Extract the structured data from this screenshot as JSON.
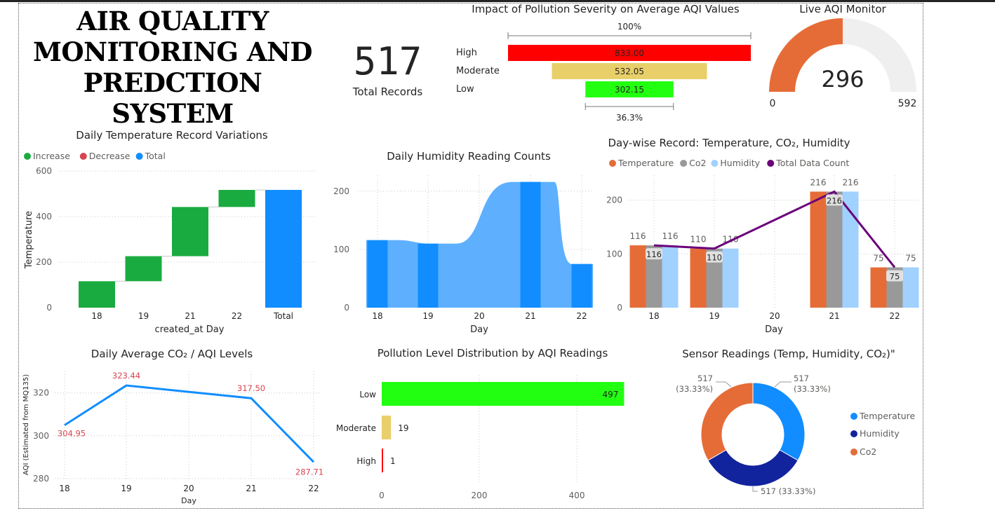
{
  "header": {
    "title_lines": [
      "AIR QUALITY",
      "MONITORING AND",
      "PREDCTION SYSTEM"
    ]
  },
  "card": {
    "value": "517",
    "label": "Total Records"
  },
  "funnel": {
    "title": "Impact of Pollution Severity on Average AQI Values",
    "top_pct": "100%",
    "bottom_pct": "36.3%",
    "chart_data": {
      "type": "bar",
      "categories": [
        "High",
        "Moderate",
        "Low"
      ],
      "values": [
        833.0,
        532.05,
        302.15
      ],
      "value_labels": [
        "833.00",
        "532.05",
        "302.15"
      ],
      "colors": [
        "#FF0000",
        "#E8CF6A",
        "#22FF11"
      ]
    }
  },
  "gauge": {
    "title": "Live AQI Monitor",
    "value": 296,
    "min": 0,
    "max": 592,
    "value_label": "296",
    "min_label": "0",
    "max_label": "592",
    "colors": {
      "fill": "#E66C37",
      "track": "#F0EFEF"
    }
  },
  "waterfall": {
    "title": "Daily Temperature Record Variations",
    "legend": [
      {
        "label": "Increase",
        "color": "#1AAB40"
      },
      {
        "label": "Decrease",
        "color": "#D64550"
      },
      {
        "label": "Total",
        "color": "#118DFF"
      }
    ],
    "chart_data": {
      "type": "bar",
      "categories": [
        "18",
        "19",
        "21",
        "22",
        "Total"
      ],
      "values": [
        116,
        110,
        216,
        75,
        517
      ],
      "ylim": [
        0,
        600
      ],
      "yticks": [
        "0",
        "200",
        "400",
        "600"
      ],
      "xlabel": "created_at Day",
      "ylabel": "Temperature"
    }
  },
  "humidity": {
    "title": "Daily Humidity Reading Counts",
    "chart_data": {
      "type": "area",
      "categories": [
        "18",
        "19",
        "20",
        "21",
        "22"
      ],
      "values": [
        116,
        110,
        0,
        216,
        75
      ],
      "ylim": [
        0,
        230
      ],
      "yticks": [
        "0",
        "100",
        "200"
      ],
      "xlabel": "Day"
    }
  },
  "combo": {
    "title": "Day-wise Record: Temperature, CO₂, Humidity",
    "legend": [
      {
        "label": "Temperature",
        "color": "#E66C37"
      },
      {
        "label": "Co2",
        "color": "#999999"
      },
      {
        "label": "Humidity",
        "color": "#A0D1FF"
      },
      {
        "label": "Total Data Count",
        "color": "#6B007B"
      }
    ],
    "chart_data": {
      "type": "bar",
      "categories": [
        "18",
        "19",
        "20",
        "21",
        "22"
      ],
      "series": [
        {
          "name": "Temperature",
          "values": [
            116,
            110,
            null,
            216,
            75
          ]
        },
        {
          "name": "Co2",
          "values": [
            116,
            110,
            null,
            216,
            75
          ]
        },
        {
          "name": "Humidity",
          "values": [
            116,
            110,
            null,
            216,
            75
          ]
        },
        {
          "name": "Total Data Count",
          "values": [
            116,
            110,
            null,
            216,
            75
          ]
        }
      ],
      "ylim": [
        0,
        240
      ],
      "yticks": [
        "0",
        "100",
        "200"
      ],
      "xlabel": "Day"
    }
  },
  "co2": {
    "title": "Daily Average CO₂ / AQI Levels",
    "chart_data": {
      "type": "line",
      "categories": [
        "18",
        "19",
        "20",
        "21",
        "22"
      ],
      "values": [
        304.95,
        323.44,
        null,
        317.5,
        287.71
      ],
      "value_labels": [
        "304.95",
        "323.44",
        "",
        "317.50",
        "287.71"
      ],
      "ylim": [
        279,
        330
      ],
      "yticks": [
        "280",
        "300",
        "320"
      ],
      "xlabel": "Day",
      "ylabel": "AQI (Estimated from MQ135)"
    }
  },
  "distribution": {
    "title": "Pollution Level Distribution by AQI Readings",
    "chart_data": {
      "type": "bar",
      "categories": [
        "Low",
        "Moderate",
        "High"
      ],
      "values": [
        497,
        19,
        1
      ],
      "value_labels": [
        "497",
        "19",
        "1"
      ],
      "colors": [
        "#22FF11",
        "#E8CF6A",
        "#FF0000"
      ],
      "xlim": [
        0,
        500
      ],
      "xticks": [
        "0",
        "200",
        "400"
      ]
    }
  },
  "donut": {
    "title": "Sensor Readings (Temp, Humidity, CO₂)\"",
    "chart_data": {
      "type": "pie",
      "categories": [
        "Temperature",
        "Humidity",
        "Co2"
      ],
      "values": [
        517,
        517,
        517
      ],
      "colors": [
        "#118DFF",
        "#12239E",
        "#E66C37"
      ],
      "labels": [
        {
          "value": "517",
          "pct": "(33.33%)"
        },
        {
          "value": "517",
          "pct": "(33.33%)"
        },
        {
          "value": "517",
          "pct": "(33.33%)"
        }
      ],
      "label_bottom": "517 (33.33%)"
    }
  }
}
